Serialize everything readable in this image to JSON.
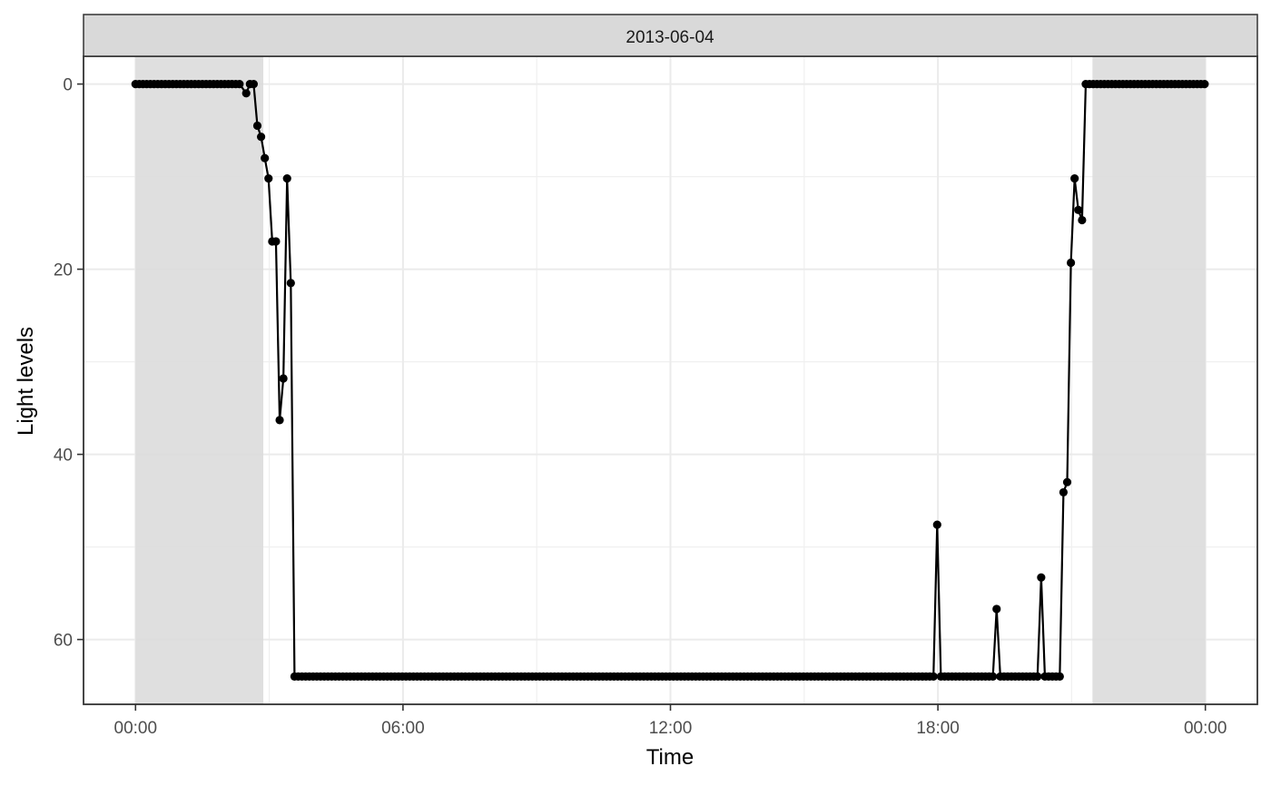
{
  "chart_data": {
    "type": "line",
    "facet_label": "2013-06-04",
    "xlabel": "Time",
    "ylabel": "Light levels",
    "y_reversed": true,
    "ylim": [
      -3,
      67
    ],
    "xlim": [
      "2013-06-03T22:50",
      "2013-06-05T01:10"
    ],
    "grid": true,
    "x_ticks": [
      {
        "label": "00:00",
        "time": "2013-06-04T00:00"
      },
      {
        "label": "06:00",
        "time": "2013-06-04T06:00"
      },
      {
        "label": "12:00",
        "time": "2013-06-04T12:00"
      },
      {
        "label": "18:00",
        "time": "2013-06-04T18:00"
      },
      {
        "label": "00:00",
        "time": "2013-06-05T00:00"
      }
    ],
    "y_ticks": [
      0,
      20,
      40,
      60
    ],
    "night_shading": [
      {
        "start": "2013-06-04T00:00",
        "end": "2013-06-04T02:52"
      },
      {
        "start": "2013-06-04T21:28",
        "end": "2013-06-05T00:00"
      }
    ],
    "colors": {
      "line": "#000000",
      "shading": "#dcdcdc",
      "strip": "#d9d9d9"
    },
    "series": [
      {
        "points": [
          [
            "2013-06-04T02:29",
            1
          ],
          [
            "2013-06-04T02:34",
            0
          ],
          [
            "2013-06-04T02:39",
            0
          ],
          [
            "2013-06-04T02:44",
            4.5
          ],
          [
            "2013-06-04T02:49",
            5.7
          ],
          [
            "2013-06-04T02:54",
            8
          ],
          [
            "2013-06-04T02:59",
            10.2
          ],
          [
            "2013-06-04T03:04",
            17
          ],
          [
            "2013-06-04T03:09",
            17
          ],
          [
            "2013-06-04T03:14",
            36.3
          ],
          [
            "2013-06-04T03:19",
            31.8
          ],
          [
            "2013-06-04T03:24",
            10.2
          ],
          [
            "2013-06-04T03:29",
            21.5
          ],
          [
            "2013-06-04T03:34",
            64
          ],
          [
            "2013-06-04T17:54",
            64
          ],
          [
            "2013-06-04T17:59",
            47.6
          ],
          [
            "2013-06-04T18:04",
            64
          ],
          [
            "2013-06-04T19:14",
            64
          ],
          [
            "2013-06-04T19:19",
            56.7
          ],
          [
            "2013-06-04T19:24",
            64
          ],
          [
            "2013-06-04T20:14",
            64
          ],
          [
            "2013-06-04T20:19",
            53.3
          ],
          [
            "2013-06-04T20:24",
            64
          ],
          [
            "2013-06-04T20:44",
            64
          ],
          [
            "2013-06-04T20:49",
            44.1
          ],
          [
            "2013-06-04T20:54",
            43
          ],
          [
            "2013-06-04T20:59",
            19.3
          ],
          [
            "2013-06-04T21:04",
            10.2
          ],
          [
            "2013-06-04T21:09",
            13.6
          ],
          [
            "2013-06-04T21:14",
            14.7
          ],
          [
            "2013-06-04T21:19",
            0
          ]
        ],
        "leading_constant": {
          "value": 0,
          "from": "2013-06-04T00:00",
          "to": "2013-06-04T02:24"
        },
        "middle_constant": {
          "value": 64,
          "from": "2013-06-04T03:34",
          "to": "2013-06-04T20:44"
        },
        "trailing_constant": {
          "value": 0,
          "from": "2013-06-04T21:19",
          "to": "2013-06-05T00:00"
        },
        "interval_minutes": 5
      }
    ]
  }
}
